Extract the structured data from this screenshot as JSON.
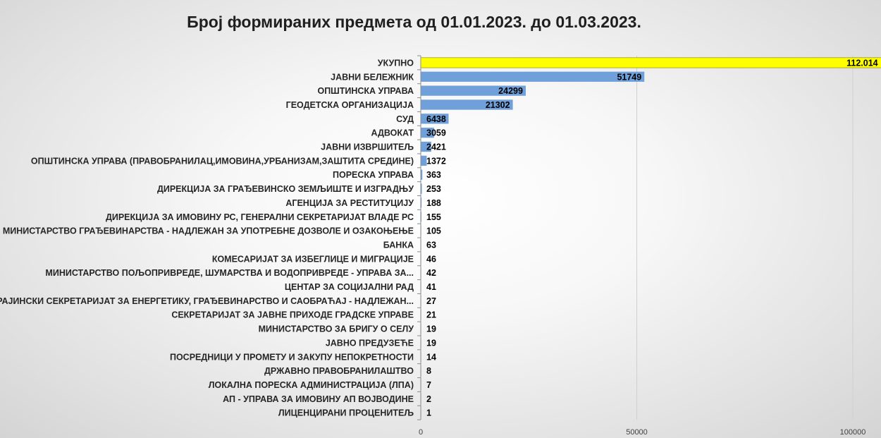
{
  "chart_data": {
    "type": "bar",
    "orientation": "horizontal",
    "title": "Број формираних предмета од 01.01.2023. до 01.03.2023.",
    "xlim": [
      0,
      100000
    ],
    "x_ticks": [
      "0",
      "50000",
      "100000"
    ],
    "x_tick_values": [
      0,
      50000,
      100000
    ],
    "grid": true,
    "bar_color": "#6fa0da",
    "highlight_color": "#ffff00",
    "categories": [
      "УКУПНО",
      "ЈАВНИ БЕЛЕЖНИК",
      "ОПШТИНСКА УПРАВА",
      "ГЕОДЕТСКА ОРГАНИЗАЦИЈА",
      "СУД",
      "АДВОКАТ",
      "ЈАВНИ ИЗВРШИТЕЉ",
      "ОПШТИНСКА УПРАВА (ПРАВОБРАНИЛАЦ,ИМОВИНА,УРБАНИЗАМ,ЗАШТИТА СРЕДИНЕ)",
      "ПОРЕСКА УПРАВА",
      "ДИРЕКЦИЈА ЗА ГРАЂЕВИНСКО ЗЕМЉИШТЕ И ИЗГРАДЊУ",
      "АГЕНЦИЈА ЗА РЕСТИТУЦИЈУ",
      "ДИРЕКЦИЈА ЗА ИМОВИНУ РС, ГЕНЕРАЛНИ СЕКРЕТАРИЈАТ ВЛАДЕ РС",
      "МИНИСТАРСТВО ГРАЂЕВИНАРСТВА - НАДЛЕЖАН ЗА УПОТРЕБНЕ ДОЗВОЛЕ И ОЗАКОЊЕЊЕ",
      "БАНКА",
      "КОМЕСАРИЈАТ ЗА ИЗБЕГЛИЦЕ И МИГРАЦИЈЕ",
      "МИНИСТАРСТВО ПОЉОПРИВРЕДЕ, ШУМАРСТВА И ВОДОПРИВРЕДЕ - УПРАВА ЗА...",
      "ЦЕНТАР ЗА СОЦИЈАЛНИ РАД",
      "ПОКРАЈИНСКИ СЕКРЕТАРИЈАТ ЗА ЕНЕРГЕТИКУ, ГРАЂЕВИНАРСТВО И САОБРАЋАЈ - НАДЛЕЖАН...",
      "СЕКРЕТАРИЈАТ ЗА ЈАВНЕ ПРИХОДЕ ГРАДСКЕ УПРАВЕ",
      "МИНИСТАРСТВО ЗА БРИГУ О СЕЛУ",
      "ЈАВНО ПРЕДУЗЕЋЕ",
      "ПОСРЕДНИЦИ У ПРОМЕТУ И ЗАКУПУ НЕПОКРЕТНОСТИ",
      "ДРЖАВНО ПРАВОБРАНИЛАШТВО",
      "ЛОКАЛНА ПОРЕСКА АДМИНИСТРАЦИЈА (ЛПА)",
      "АП - УПРАВА ЗА ИМОВИНУ АП ВОЈВОДИНЕ",
      "ЛИЦЕНЦИРАНИ ПРОЦЕНИТЕЉ"
    ],
    "values": [
      112014,
      51749,
      24299,
      21302,
      6438,
      3059,
      2421,
      1372,
      363,
      253,
      188,
      155,
      105,
      63,
      46,
      42,
      41,
      27,
      21,
      19,
      19,
      14,
      8,
      7,
      2,
      1
    ],
    "value_labels": [
      "112.014",
      "51749",
      "24299",
      "21302",
      "6438",
      "3059",
      "2421",
      "1372",
      "363",
      "253",
      "188",
      "155",
      "105",
      "63",
      "46",
      "42",
      "41",
      "27",
      "21",
      "19",
      "19",
      "14",
      "8",
      "7",
      "2",
      "1"
    ],
    "highlighted_index": 0
  }
}
